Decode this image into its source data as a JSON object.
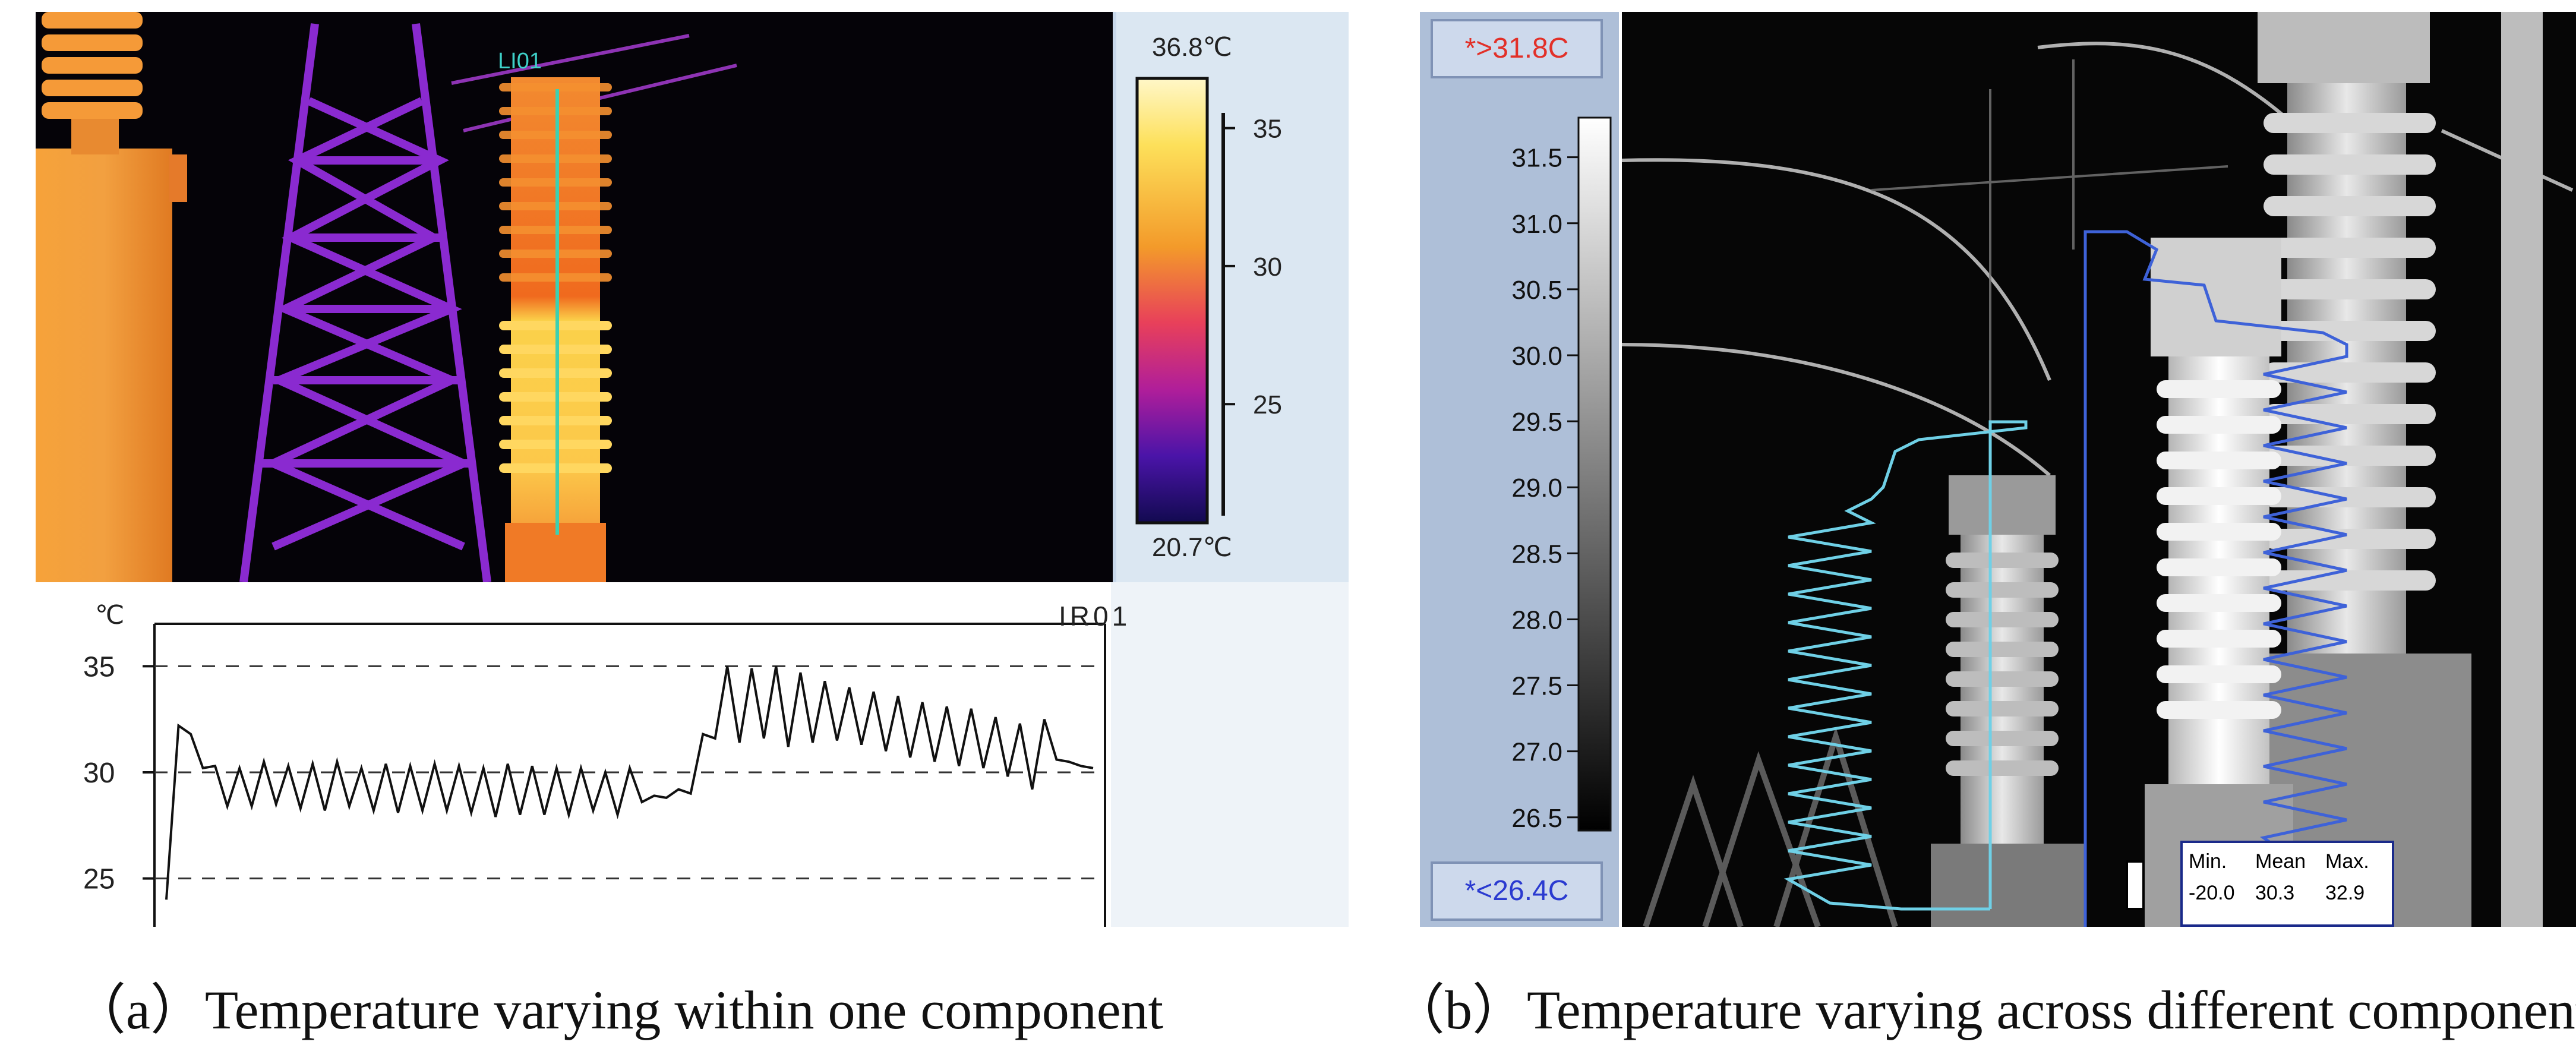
{
  "panel_a": {
    "thermal": {
      "line_label": "LI01",
      "scale_max": "36.8℃",
      "scale_min": "20.7℃",
      "ticks": [
        {
          "label": "35",
          "value": 35
        },
        {
          "label": "30",
          "value": 30
        },
        {
          "label": "25",
          "value": 25
        }
      ],
      "colors": {
        "hot": "#fff7c8",
        "mid": "#f06a1e",
        "cool": "#8a1aa8",
        "cold": "#120a50"
      }
    },
    "profile_chart": {
      "unit_label": "℃",
      "channel_label": "IR01"
    }
  },
  "panel_b": {
    "upper_threshold": "*>31.8C",
    "lower_threshold": "*<26.4C",
    "scale_ticks": [
      {
        "label": "31.5",
        "value": 31.5
      },
      {
        "label": "31.0",
        "value": 31.0
      },
      {
        "label": "30.5",
        "value": 30.5
      },
      {
        "label": "30.0",
        "value": 30.0
      },
      {
        "label": "29.5",
        "value": 29.5
      },
      {
        "label": "29.0",
        "value": 29.0
      },
      {
        "label": "28.5",
        "value": 28.5
      },
      {
        "label": "28.0",
        "value": 28.0
      },
      {
        "label": "27.5",
        "value": 27.5
      },
      {
        "label": "27.0",
        "value": 27.0
      },
      {
        "label": "26.5",
        "value": 26.5
      }
    ],
    "stats": {
      "headers": [
        "Min.",
        "Mean",
        "Max."
      ],
      "values": [
        "-20.0",
        "30.3",
        "32.9"
      ]
    },
    "profile_colors": {
      "left": "#6fd0e6",
      "right": "#3e62d8"
    }
  },
  "captions": {
    "a": "（a）Temperature varying within one component",
    "b": "（b）Temperature varying across different components"
  },
  "chart_data": {
    "type": "line",
    "title": "",
    "xlabel": "",
    "ylabel": "℃",
    "ylim": [
      23,
      37
    ],
    "yticks": [
      25,
      30,
      35
    ],
    "grid": "dashed horizontal at ticks",
    "series": [
      {
        "name": "IR01",
        "values": [
          24,
          32.2,
          31.8,
          30.2,
          30.3,
          28.4,
          30.2,
          28.4,
          30.5,
          28.5,
          30.3,
          28.3,
          30.4,
          28.2,
          30.5,
          28.4,
          30.2,
          28.2,
          30.4,
          28.1,
          30.3,
          28.2,
          30.4,
          28.2,
          30.3,
          28.1,
          30.2,
          27.9,
          30.4,
          28.0,
          30.3,
          28.0,
          30.2,
          28.0,
          30.2,
          28.2,
          30.0,
          28.0,
          30.2,
          28.6,
          28.9,
          28.8,
          29.2,
          29.0,
          31.8,
          31.6,
          35.0,
          31.4,
          34.9,
          31.6,
          35.0,
          31.2,
          34.7,
          31.4,
          34.3,
          31.5,
          34.0,
          31.3,
          33.8,
          31.0,
          33.6,
          30.7,
          33.3,
          30.5,
          33.1,
          30.3,
          33.0,
          30.2,
          32.6,
          29.8,
          32.3,
          29.2,
          32.5,
          30.6,
          30.5,
          30.3,
          30.2
        ]
      }
    ]
  }
}
